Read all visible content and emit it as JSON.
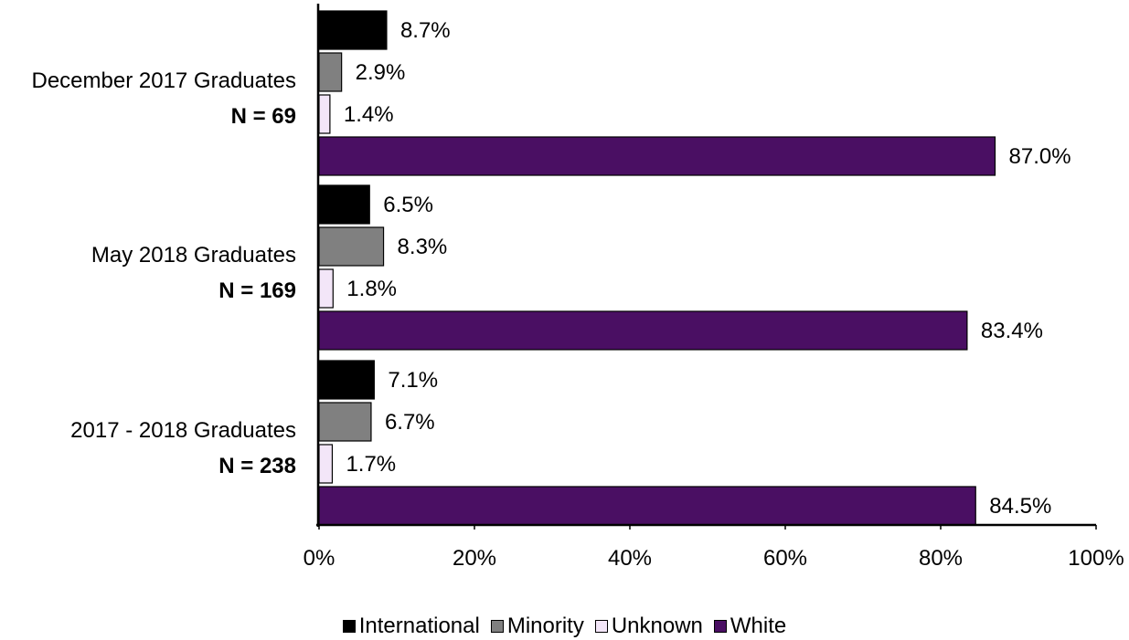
{
  "chart_data": {
    "type": "bar",
    "orientation": "horizontal",
    "categories": [
      {
        "label": "December 2017 Graduates",
        "n_label": "N = 69"
      },
      {
        "label": "May 2018 Graduates",
        "n_label": "N = 169"
      },
      {
        "label": "2017 - 2018 Graduates",
        "n_label": "N = 238"
      }
    ],
    "series": [
      {
        "name": "International",
        "color": "#000000",
        "values": [
          8.7,
          6.5,
          7.1
        ],
        "labels": [
          "8.7%",
          "6.5%",
          "7.1%"
        ]
      },
      {
        "name": "Minority",
        "color": "#808080",
        "values": [
          2.9,
          8.3,
          6.7
        ],
        "labels": [
          "2.9%",
          "8.3%",
          "6.7%"
        ]
      },
      {
        "name": "Unknown",
        "color": "#f3e6f8",
        "values": [
          1.4,
          1.8,
          1.7
        ],
        "labels": [
          "1.4%",
          "1.8%",
          "1.7%"
        ]
      },
      {
        "name": "White",
        "color": "#4a0f63",
        "values": [
          87.0,
          83.4,
          84.5
        ],
        "labels": [
          "87.0%",
          "83.4%",
          "84.5%"
        ]
      }
    ],
    "x_ticks": [
      "0%",
      "20%",
      "40%",
      "60%",
      "80%",
      "100%"
    ],
    "xlim": [
      0,
      100
    ],
    "grid": false,
    "legend_position": "bottom"
  }
}
